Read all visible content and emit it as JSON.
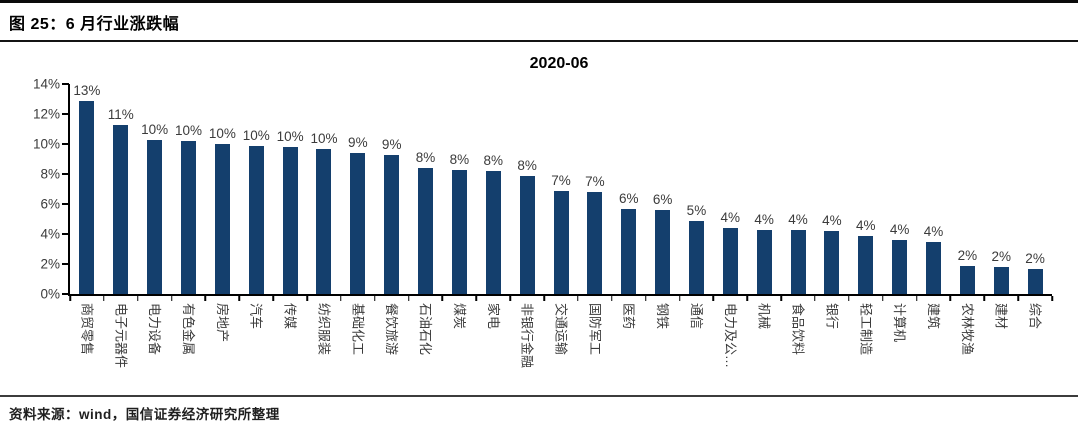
{
  "header": {
    "title": "图 25：6 月行业涨跌幅"
  },
  "footer": {
    "source": "资料来源：wind，国信证券经济研究所整理"
  },
  "chart_data": {
    "type": "bar",
    "title": "2020-06",
    "categories": [
      "商贸零售",
      "电子元器件",
      "电力设备",
      "有色金属",
      "房地产",
      "汽车",
      "传媒",
      "纺织服装",
      "基础化工",
      "餐饮旅游",
      "石油石化",
      "煤炭",
      "家电",
      "非银行金融",
      "交通运输",
      "国防军工",
      "医药",
      "钢铁",
      "通信",
      "电力及公…",
      "机械",
      "食品饮料",
      "银行",
      "轻工制造",
      "计算机",
      "建筑",
      "农林牧渔",
      "建材",
      "综合"
    ],
    "values": [
      12.9,
      11.3,
      10.3,
      10.2,
      10.0,
      9.9,
      9.8,
      9.7,
      9.4,
      9.3,
      8.4,
      8.3,
      8.2,
      7.9,
      6.9,
      6.8,
      5.7,
      5.6,
      4.9,
      4.4,
      4.3,
      4.3,
      4.2,
      3.9,
      3.6,
      3.5,
      1.9,
      1.8,
      1.7
    ],
    "labels": [
      "13%",
      "11%",
      "10%",
      "10%",
      "10%",
      "10%",
      "10%",
      "10%",
      "9%",
      "9%",
      "8%",
      "8%",
      "8%",
      "8%",
      "7%",
      "7%",
      "6%",
      "6%",
      "5%",
      "4%",
      "4%",
      "4%",
      "4%",
      "4%",
      "4%",
      "4%",
      "2%",
      "2%",
      "2%"
    ],
    "xlabel": "",
    "ylabel": "",
    "ylim": [
      0,
      14
    ],
    "ytick_step": 2,
    "ytick_labels": [
      "0%",
      "2%",
      "4%",
      "6%",
      "8%",
      "10%",
      "12%",
      "14%"
    ],
    "bar_color": "#143F6D",
    "grid": false,
    "legend": false
  }
}
